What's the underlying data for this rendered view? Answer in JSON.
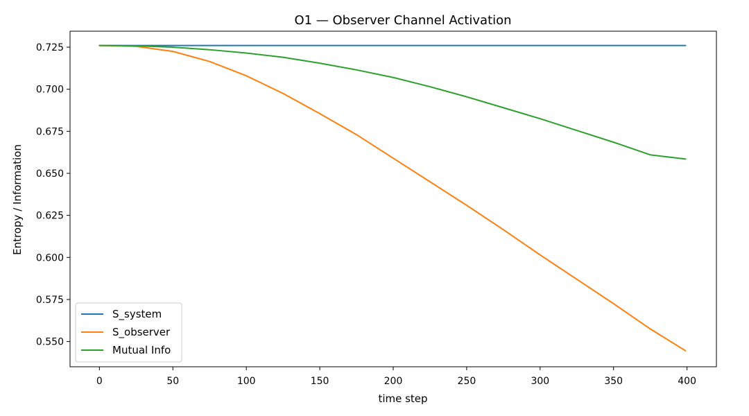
{
  "chart_data": {
    "type": "line",
    "title": "O1 — Observer Channel Activation",
    "xlabel": "time step",
    "ylabel": "Entropy / Information",
    "xlim": [
      -20,
      420
    ],
    "ylim": [
      0.535,
      0.7345
    ],
    "grid": false,
    "legend_position": "lower-left",
    "x_ticks": [
      0,
      50,
      100,
      150,
      200,
      250,
      300,
      350,
      400
    ],
    "x_tick_labels": [
      "0",
      "50",
      "100",
      "150",
      "200",
      "250",
      "300",
      "350",
      "400"
    ],
    "y_ticks": [
      0.55,
      0.575,
      0.6,
      0.625,
      0.65,
      0.675,
      0.7,
      0.725
    ],
    "y_tick_labels": [
      "0.550",
      "0.575",
      "0.600",
      "0.625",
      "0.650",
      "0.675",
      "0.700",
      "0.725"
    ],
    "x": [
      0,
      25,
      50,
      75,
      100,
      125,
      150,
      175,
      200,
      225,
      250,
      275,
      300,
      325,
      350,
      375,
      399
    ],
    "series": [
      {
        "name": "S_system",
        "color": "#1f77b4",
        "values": [
          0.726,
          0.726,
          0.726,
          0.726,
          0.726,
          0.726,
          0.726,
          0.726,
          0.726,
          0.726,
          0.726,
          0.726,
          0.726,
          0.726,
          0.726,
          0.726,
          0.726
        ]
      },
      {
        "name": "S_observer",
        "color": "#ff7f0e",
        "values": [
          0.726,
          0.7255,
          0.7225,
          0.7165,
          0.708,
          0.6975,
          0.6855,
          0.673,
          0.659,
          0.645,
          0.631,
          0.6165,
          0.6015,
          0.587,
          0.5725,
          0.5575,
          0.5445
        ]
      },
      {
        "name": "Mutual Info",
        "color": "#2ca02c",
        "values": [
          0.726,
          0.7258,
          0.725,
          0.7235,
          0.7215,
          0.719,
          0.7155,
          0.7115,
          0.707,
          0.7015,
          0.6955,
          0.689,
          0.6825,
          0.6755,
          0.6685,
          0.661,
          0.6585
        ]
      }
    ]
  }
}
